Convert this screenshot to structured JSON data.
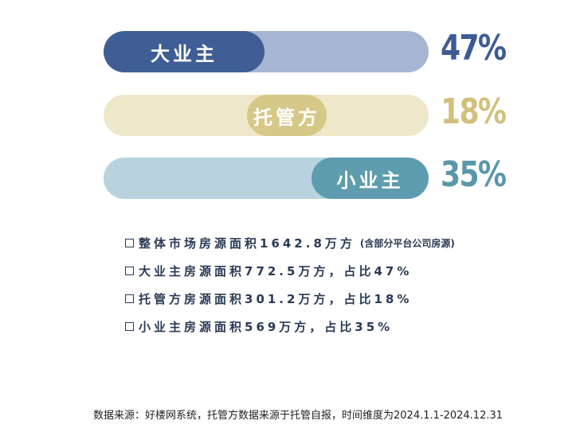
{
  "chart_data": {
    "type": "bar",
    "categories": [
      "大业主",
      "托管方",
      "小业主"
    ],
    "values": [
      47,
      18,
      35
    ],
    "value_labels": [
      "47%",
      "18%",
      "35%"
    ],
    "unit": "%",
    "colors": {
      "fills": [
        "#3f5e96",
        "#d6c886",
        "#5e9cb0"
      ],
      "tracks": [
        "#a6b5d1",
        "#efe7c9",
        "#b8d3de"
      ],
      "labels": [
        "#3d5b93",
        "#d2c07d",
        "#5a97ab"
      ]
    }
  },
  "notes": [
    {
      "text": "整体市场房源面积1642.8万方",
      "sub": "(含部分平台公司房源)"
    },
    {
      "text": "大业主房源面积772.5万方，占比47%",
      "sub": ""
    },
    {
      "text": "托管方房源面积301.2万方，占比18%",
      "sub": ""
    },
    {
      "text": "小业主房源面积569万方，占比35%",
      "sub": ""
    }
  ],
  "source": "数据来源：好楼网系统，托管方数据来源于托管自报，时间维度为2024.1.1-2024.12.31"
}
